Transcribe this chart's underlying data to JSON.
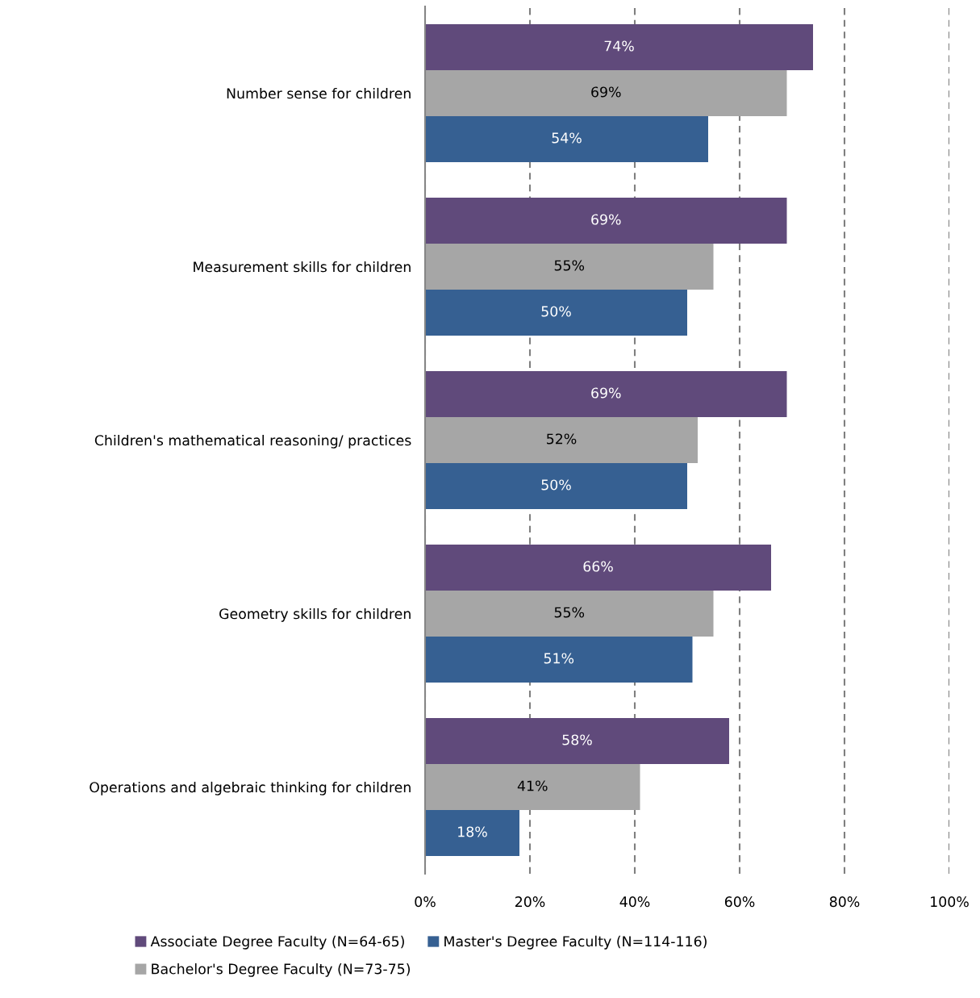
{
  "chart_data": {
    "type": "bar",
    "orientation": "horizontal",
    "categories": [
      "Number sense for children",
      "Measurement skills for children",
      "Children's mathematical reasoning/ practices",
      "Geometry skills for children",
      "Operations and algebraic thinking for children"
    ],
    "series": [
      {
        "name": "Associate Degree Faculty (N=64-65)",
        "color": "#604a7b",
        "values": [
          74,
          69,
          69,
          66,
          58
        ],
        "value_labels": [
          "74%",
          "69%",
          "69%",
          "66%",
          "58%"
        ]
      },
      {
        "name": "Bachelor's Degree Faculty (N=73-75)",
        "color": "#a6a6a6",
        "values": [
          69,
          55,
          52,
          55,
          41
        ],
        "value_labels": [
          "69%",
          "55%",
          "52%",
          "55%",
          "41%"
        ]
      },
      {
        "name": "Master's Degree Faculty (N=114-116)",
        "color": "#366092",
        "values": [
          54,
          50,
          50,
          51,
          18
        ],
        "value_labels": [
          "54%",
          "50%",
          "50%",
          "51%",
          "18%"
        ]
      }
    ],
    "xlim": [
      0,
      100
    ],
    "xticks": [
      {
        "value": 0,
        "label": "0%"
      },
      {
        "value": 20,
        "label": "20%"
      },
      {
        "value": 40,
        "label": "40%"
      },
      {
        "value": 60,
        "label": "60%"
      },
      {
        "value": 80,
        "label": "80%"
      },
      {
        "value": 100,
        "label": "100%"
      }
    ],
    "grid": "x",
    "legend": "bottom"
  }
}
